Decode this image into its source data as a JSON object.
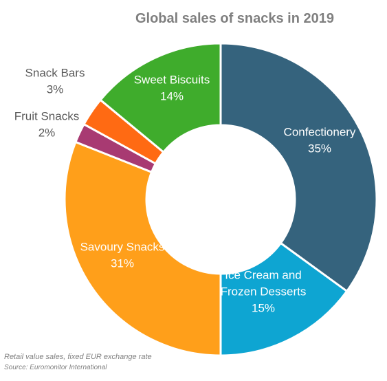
{
  "chart_data": {
    "type": "pie",
    "title": "Global sales of snacks in 2019",
    "categories": [
      "Confectionery",
      "Ice Cream and Frozen Desserts",
      "Savoury Snacks",
      "Fruit Snacks",
      "Snack Bars",
      "Sweet Biscuits"
    ],
    "values": [
      35,
      15,
      31,
      2,
      3,
      14
    ],
    "label_lines": [
      [
        "Confectionery",
        "35%"
      ],
      [
        "Ice Cream and",
        "Frozen Desserts",
        "15%"
      ],
      [
        "Savoury Snacks",
        "31%"
      ],
      [
        "Fruit Snacks",
        "2%"
      ],
      [
        "Snack Bars",
        "3%"
      ],
      [
        "Sweet Biscuits",
        "14%"
      ]
    ],
    "colors": [
      "#35637d",
      "#0ea5d2",
      "#ff9f1a",
      "#a83a72",
      "#ff6a13",
      "#3fac2c"
    ],
    "label_colors": [
      "#ffffff",
      "#ffffff",
      "#ffffff",
      "#595959",
      "#595959",
      "#ffffff"
    ],
    "hole": true
  },
  "footnotes": {
    "note": "Retail value sales, fixed EUR exchange rate",
    "source": "Source: Euromonitor International"
  }
}
